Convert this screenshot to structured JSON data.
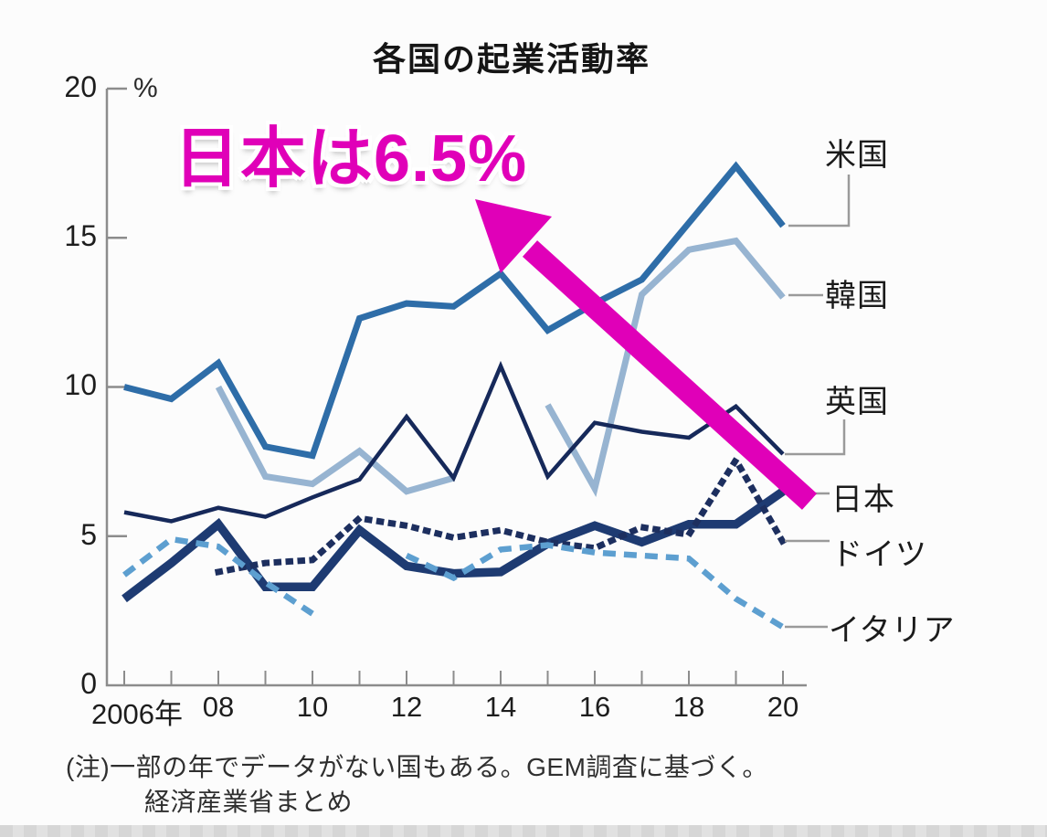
{
  "page": {
    "background": "#fcfcfc",
    "axis_color": "#8c8c8c",
    "connector_color": "#9a9a9a"
  },
  "chart_data": {
    "type": "line",
    "title": "各国の起業活動率",
    "unit_label": "%",
    "ylim": [
      0,
      20
    ],
    "grid": false,
    "x": [
      2006,
      2007,
      2008,
      2009,
      2010,
      2011,
      2012,
      2013,
      2014,
      2015,
      2016,
      2017,
      2018,
      2019,
      2020
    ],
    "x_tick_labels": [
      {
        "year": 2006,
        "label": "2006年"
      },
      {
        "year": 2008,
        "label": "08"
      },
      {
        "year": 2010,
        "label": "10"
      },
      {
        "year": 2012,
        "label": "12"
      },
      {
        "year": 2014,
        "label": "14"
      },
      {
        "year": 2016,
        "label": "16"
      },
      {
        "year": 2018,
        "label": "18"
      },
      {
        "year": 2020,
        "label": "20"
      }
    ],
    "y_ticks": [
      {
        "value": 20,
        "label": "20"
      },
      {
        "value": 15,
        "label": "15"
      },
      {
        "value": 10,
        "label": "10"
      },
      {
        "value": 5,
        "label": "5"
      },
      {
        "value": 0,
        "label": "0"
      }
    ],
    "series": [
      {
        "name": "米国",
        "key": "usa",
        "color": "#2e6da8",
        "style": "solid",
        "width": 7,
        "values": [
          10.0,
          9.6,
          10.8,
          8.0,
          7.7,
          12.3,
          12.8,
          12.7,
          13.8,
          11.9,
          12.8,
          13.6,
          15.5,
          17.4,
          15.4
        ]
      },
      {
        "name": "韓国",
        "key": "korea",
        "color": "#97b4d1",
        "style": "solid",
        "width": 7,
        "values": [
          null,
          null,
          10.0,
          7.0,
          6.75,
          7.85,
          6.5,
          6.95,
          null,
          9.4,
          6.6,
          13.1,
          14.6,
          14.9,
          13.0
        ]
      },
      {
        "name": "英国",
        "key": "uk",
        "color": "#16295a",
        "style": "solid",
        "width": 4.5,
        "values": [
          5.8,
          5.5,
          5.95,
          5.65,
          6.3,
          6.9,
          9.0,
          6.95,
          10.7,
          7.0,
          8.8,
          8.5,
          8.3,
          9.35,
          7.75
        ]
      },
      {
        "name": "日本",
        "key": "japan",
        "color": "#1e3b72",
        "style": "solid",
        "width": 9.5,
        "values": [
          2.9,
          4.1,
          5.4,
          3.3,
          3.3,
          5.2,
          4.0,
          3.75,
          3.8,
          4.75,
          5.35,
          4.8,
          5.4,
          5.4,
          6.5
        ]
      },
      {
        "name": "ドイツ",
        "key": "germany",
        "color": "#1d2f5f",
        "style": "dotted",
        "width": 7,
        "values": [
          null,
          null,
          3.8,
          4.1,
          4.2,
          5.6,
          5.35,
          4.95,
          5.2,
          4.8,
          4.6,
          5.3,
          5.05,
          7.55,
          4.8
        ]
      },
      {
        "name": "イタリア",
        "key": "italy",
        "color": "#5d9fd0",
        "style": "dashed",
        "width": 6.5,
        "values": [
          3.7,
          4.9,
          4.65,
          3.45,
          2.4,
          null,
          4.35,
          3.6,
          4.55,
          4.7,
          4.45,
          4.35,
          4.25,
          2.9,
          1.95
        ]
      }
    ],
    "note_line1": "(注)一部の年でデータがない国もある。GEM調査に基づく。",
    "note_line2": "経済産業省まとめ"
  },
  "legend": {
    "items": [
      {
        "label": "米国"
      },
      {
        "label": "韓国"
      },
      {
        "label": "英国"
      },
      {
        "label": "日本"
      },
      {
        "label": "ドイツ"
      },
      {
        "label": "イタリア"
      }
    ]
  },
  "annotation": {
    "text": "日本は6.5%",
    "color": "#e000b8"
  }
}
